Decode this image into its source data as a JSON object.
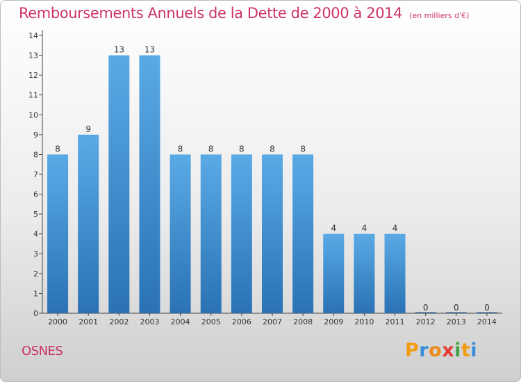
{
  "title": "Remboursements Annuels de la Dette de 2000 à 2014",
  "subtitle": "(en milliers d'€)",
  "commune": "OSNES",
  "logo": "Proxiti",
  "colors": {
    "accent": "#cc3366",
    "bar_top": "#5aaae6",
    "bar_bottom": "#2a72b4",
    "axis": "#444444"
  },
  "chart_data": {
    "type": "bar",
    "categories": [
      "2000",
      "2001",
      "2002",
      "2003",
      "2004",
      "2005",
      "2006",
      "2007",
      "2008",
      "2009",
      "2010",
      "2011",
      "2012",
      "2013",
      "2014"
    ],
    "values": [
      8,
      9,
      13,
      13,
      8,
      8,
      8,
      8,
      8,
      4,
      4,
      4,
      0,
      0,
      0
    ],
    "title": "Remboursements Annuels de la Dette de 2000 à 2014",
    "xlabel": "",
    "ylabel": "",
    "ylim": [
      0,
      14
    ],
    "yticks": [
      0,
      1,
      2,
      3,
      4,
      5,
      6,
      7,
      8,
      9,
      10,
      11,
      12,
      13,
      14
    ],
    "data_labels": true,
    "grid": false,
    "legend": "none"
  }
}
